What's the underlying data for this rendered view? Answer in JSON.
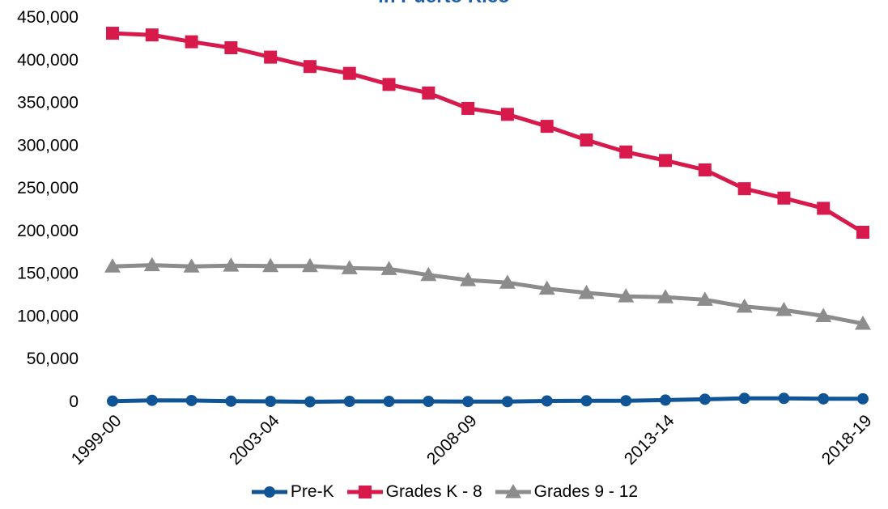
{
  "chart_data": {
    "type": "line",
    "title": "in Puerto Rico",
    "xlabel": "",
    "ylabel": "",
    "ylim": [
      0,
      450000
    ],
    "yticks": [
      "0",
      "50,000",
      "100,000",
      "150,000",
      "200,000",
      "250,000",
      "300,000",
      "350,000",
      "400,000",
      "450,000"
    ],
    "xtick_labels": [
      "1999-00",
      "2003-04",
      "2008-09",
      "2013-14",
      "2018-19"
    ],
    "categories": [
      "1999-00",
      "2000-01",
      "2001-02",
      "2002-03",
      "2003-04",
      "2004-05",
      "2005-06",
      "2006-07",
      "2007-08",
      "2008-09",
      "2009-10",
      "2010-11",
      "2011-12",
      "2012-13",
      "2013-14",
      "2014-15",
      "2015-16",
      "2016-17",
      "2017-18",
      "2018-19"
    ],
    "legend_position": "bottom",
    "grid": false,
    "series": [
      {
        "name": "Pre-K",
        "color": "#0f5596",
        "marker": "circle",
        "values": [
          300,
          1200,
          1000,
          200,
          0,
          -500,
          0,
          0,
          0,
          -200,
          -300,
          500,
          700,
          700,
          1500,
          2500,
          3500,
          3500,
          3000,
          3000
        ]
      },
      {
        "name": "Grades K - 8",
        "color": "#d7194b",
        "marker": "square",
        "values": [
          431000,
          429000,
          421000,
          414000,
          403000,
          392000,
          384000,
          371000,
          361000,
          343000,
          336000,
          322000,
          306000,
          292000,
          282000,
          271000,
          249000,
          238000,
          226000,
          198000
        ]
      },
      {
        "name": "Grades 9 - 12",
        "color": "#8c8c8c",
        "marker": "triangle",
        "values": [
          158000,
          159500,
          158000,
          159000,
          158500,
          158500,
          156000,
          155000,
          148000,
          142000,
          139000,
          132000,
          127000,
          123000,
          122000,
          119000,
          111000,
          107000,
          100000,
          91000
        ]
      }
    ]
  }
}
